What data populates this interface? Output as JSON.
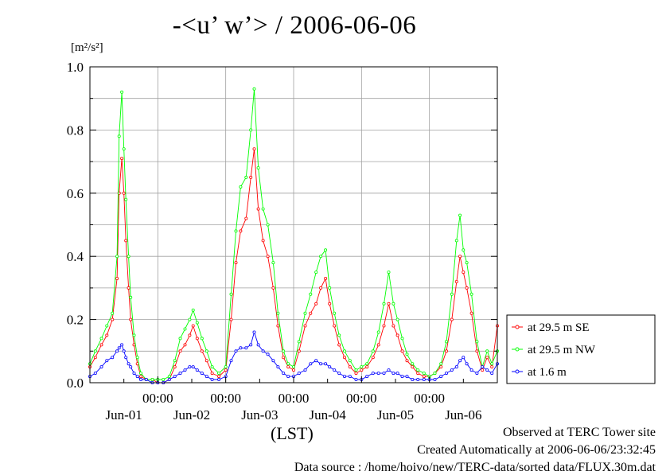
{
  "page": {
    "title": "-<u’ w’> / 2006-06-06",
    "unit_label": "[m²/s²]",
    "xaxis_note": "(LST)",
    "footer": [
      "Observed at TERC Tower site",
      "Created Automatically at 2006-06-06/23:32:45",
      "Data source : /home/hoivo/new/TERC-data/sorted  data/FLUX.30m.dat"
    ]
  },
  "chart_data": {
    "type": "line",
    "title": "-<u’ w’> / 2006-06-06",
    "ylabel": "[m²/s²]",
    "xlabel": "(LST)",
    "ylim": [
      0,
      1.0
    ],
    "yticks": [
      "0.0",
      "0.2",
      "0.4",
      "0.6",
      "0.8",
      "1.0"
    ],
    "xlim_days": [
      0,
      6
    ],
    "x_midnight_labels": [
      "00:00",
      "00:00",
      "00:00",
      "00:00",
      "00:00"
    ],
    "x_day_labels": [
      "Jun-01",
      "Jun-02",
      "Jun-03",
      "Jun-04",
      "Jun-05",
      "Jun-06"
    ],
    "grid": true,
    "legend_position": "right",
    "series": [
      {
        "name": "at 29.5 m SE",
        "color": "#ff0000",
        "points": [
          [
            0.0,
            0.05
          ],
          [
            0.08,
            0.08
          ],
          [
            0.17,
            0.12
          ],
          [
            0.25,
            0.15
          ],
          [
            0.33,
            0.2
          ],
          [
            0.4,
            0.33
          ],
          [
            0.43,
            0.6
          ],
          [
            0.47,
            0.71
          ],
          [
            0.5,
            0.6
          ],
          [
            0.53,
            0.45
          ],
          [
            0.57,
            0.3
          ],
          [
            0.6,
            0.2
          ],
          [
            0.65,
            0.12
          ],
          [
            0.7,
            0.06
          ],
          [
            0.75,
            0.02
          ],
          [
            0.83,
            0.01
          ],
          [
            0.92,
            0.01
          ],
          [
            1.0,
            0.0
          ],
          [
            1.08,
            0.0
          ],
          [
            1.17,
            0.01
          ],
          [
            1.25,
            0.05
          ],
          [
            1.33,
            0.1
          ],
          [
            1.4,
            0.12
          ],
          [
            1.47,
            0.15
          ],
          [
            1.52,
            0.18
          ],
          [
            1.58,
            0.14
          ],
          [
            1.65,
            0.1
          ],
          [
            1.72,
            0.07
          ],
          [
            1.8,
            0.03
          ],
          [
            1.9,
            0.02
          ],
          [
            2.0,
            0.04
          ],
          [
            2.08,
            0.2
          ],
          [
            2.15,
            0.38
          ],
          [
            2.22,
            0.48
          ],
          [
            2.3,
            0.52
          ],
          [
            2.37,
            0.65
          ],
          [
            2.42,
            0.74
          ],
          [
            2.48,
            0.55
          ],
          [
            2.55,
            0.45
          ],
          [
            2.62,
            0.4
          ],
          [
            2.7,
            0.3
          ],
          [
            2.77,
            0.18
          ],
          [
            2.85,
            0.08
          ],
          [
            2.92,
            0.05
          ],
          [
            3.0,
            0.04
          ],
          [
            3.08,
            0.1
          ],
          [
            3.17,
            0.18
          ],
          [
            3.25,
            0.22
          ],
          [
            3.33,
            0.25
          ],
          [
            3.4,
            0.3
          ],
          [
            3.47,
            0.33
          ],
          [
            3.53,
            0.25
          ],
          [
            3.6,
            0.18
          ],
          [
            3.67,
            0.12
          ],
          [
            3.75,
            0.08
          ],
          [
            3.83,
            0.05
          ],
          [
            3.92,
            0.03
          ],
          [
            4.0,
            0.04
          ],
          [
            4.08,
            0.05
          ],
          [
            4.17,
            0.08
          ],
          [
            4.25,
            0.12
          ],
          [
            4.33,
            0.18
          ],
          [
            4.4,
            0.25
          ],
          [
            4.47,
            0.18
          ],
          [
            4.53,
            0.15
          ],
          [
            4.6,
            0.1
          ],
          [
            4.67,
            0.07
          ],
          [
            4.75,
            0.05
          ],
          [
            4.83,
            0.03
          ],
          [
            4.92,
            0.02
          ],
          [
            5.0,
            0.02
          ],
          [
            5.08,
            0.03
          ],
          [
            5.17,
            0.05
          ],
          [
            5.25,
            0.1
          ],
          [
            5.33,
            0.2
          ],
          [
            5.4,
            0.32
          ],
          [
            5.45,
            0.4
          ],
          [
            5.5,
            0.35
          ],
          [
            5.55,
            0.3
          ],
          [
            5.62,
            0.22
          ],
          [
            5.7,
            0.1
          ],
          [
            5.78,
            0.04
          ],
          [
            5.85,
            0.08
          ],
          [
            5.92,
            0.05
          ],
          [
            6.0,
            0.18
          ]
        ]
      },
      {
        "name": "at 29.5 m NW",
        "color": "#00ff00",
        "points": [
          [
            0.0,
            0.06
          ],
          [
            0.08,
            0.1
          ],
          [
            0.17,
            0.14
          ],
          [
            0.25,
            0.18
          ],
          [
            0.33,
            0.22
          ],
          [
            0.4,
            0.4
          ],
          [
            0.43,
            0.78
          ],
          [
            0.47,
            0.92
          ],
          [
            0.5,
            0.74
          ],
          [
            0.53,
            0.58
          ],
          [
            0.57,
            0.4
          ],
          [
            0.6,
            0.27
          ],
          [
            0.65,
            0.15
          ],
          [
            0.7,
            0.08
          ],
          [
            0.75,
            0.03
          ],
          [
            0.83,
            0.01
          ],
          [
            0.92,
            0.01
          ],
          [
            1.0,
            0.01
          ],
          [
            1.08,
            0.01
          ],
          [
            1.17,
            0.02
          ],
          [
            1.25,
            0.07
          ],
          [
            1.33,
            0.14
          ],
          [
            1.4,
            0.17
          ],
          [
            1.47,
            0.2
          ],
          [
            1.52,
            0.23
          ],
          [
            1.58,
            0.19
          ],
          [
            1.65,
            0.14
          ],
          [
            1.72,
            0.1
          ],
          [
            1.8,
            0.05
          ],
          [
            1.9,
            0.03
          ],
          [
            2.0,
            0.05
          ],
          [
            2.08,
            0.28
          ],
          [
            2.15,
            0.48
          ],
          [
            2.22,
            0.62
          ],
          [
            2.3,
            0.65
          ],
          [
            2.37,
            0.8
          ],
          [
            2.42,
            0.93
          ],
          [
            2.48,
            0.68
          ],
          [
            2.55,
            0.55
          ],
          [
            2.62,
            0.5
          ],
          [
            2.7,
            0.38
          ],
          [
            2.77,
            0.22
          ],
          [
            2.85,
            0.1
          ],
          [
            2.92,
            0.06
          ],
          [
            3.0,
            0.05
          ],
          [
            3.08,
            0.13
          ],
          [
            3.17,
            0.22
          ],
          [
            3.25,
            0.28
          ],
          [
            3.33,
            0.35
          ],
          [
            3.4,
            0.4
          ],
          [
            3.47,
            0.42
          ],
          [
            3.53,
            0.3
          ],
          [
            3.6,
            0.22
          ],
          [
            3.67,
            0.15
          ],
          [
            3.75,
            0.1
          ],
          [
            3.83,
            0.07
          ],
          [
            3.92,
            0.04
          ],
          [
            4.0,
            0.05
          ],
          [
            4.08,
            0.06
          ],
          [
            4.17,
            0.1
          ],
          [
            4.25,
            0.16
          ],
          [
            4.33,
            0.25
          ],
          [
            4.4,
            0.35
          ],
          [
            4.47,
            0.25
          ],
          [
            4.53,
            0.2
          ],
          [
            4.6,
            0.14
          ],
          [
            4.67,
            0.09
          ],
          [
            4.75,
            0.06
          ],
          [
            4.83,
            0.04
          ],
          [
            4.92,
            0.03
          ],
          [
            5.0,
            0.02
          ],
          [
            5.08,
            0.03
          ],
          [
            5.17,
            0.06
          ],
          [
            5.25,
            0.13
          ],
          [
            5.33,
            0.28
          ],
          [
            5.4,
            0.45
          ],
          [
            5.45,
            0.53
          ],
          [
            5.5,
            0.42
          ],
          [
            5.55,
            0.38
          ],
          [
            5.62,
            0.28
          ],
          [
            5.7,
            0.13
          ],
          [
            5.78,
            0.05
          ],
          [
            5.85,
            0.1
          ],
          [
            5.92,
            0.06
          ],
          [
            6.0,
            0.1
          ]
        ]
      },
      {
        "name": "at 1.6 m",
        "color": "#0000ff",
        "points": [
          [
            0.0,
            0.02
          ],
          [
            0.08,
            0.03
          ],
          [
            0.17,
            0.05
          ],
          [
            0.25,
            0.07
          ],
          [
            0.33,
            0.08
          ],
          [
            0.4,
            0.1
          ],
          [
            0.43,
            0.11
          ],
          [
            0.47,
            0.12
          ],
          [
            0.5,
            0.1
          ],
          [
            0.53,
            0.08
          ],
          [
            0.57,
            0.06
          ],
          [
            0.6,
            0.05
          ],
          [
            0.65,
            0.03
          ],
          [
            0.7,
            0.02
          ],
          [
            0.75,
            0.01
          ],
          [
            0.83,
            0.01
          ],
          [
            0.92,
            0.0
          ],
          [
            1.0,
            0.0
          ],
          [
            1.08,
            0.0
          ],
          [
            1.17,
            0.01
          ],
          [
            1.25,
            0.02
          ],
          [
            1.33,
            0.03
          ],
          [
            1.4,
            0.04
          ],
          [
            1.47,
            0.05
          ],
          [
            1.52,
            0.05
          ],
          [
            1.58,
            0.04
          ],
          [
            1.65,
            0.03
          ],
          [
            1.72,
            0.02
          ],
          [
            1.8,
            0.01
          ],
          [
            1.9,
            0.01
          ],
          [
            2.0,
            0.02
          ],
          [
            2.08,
            0.07
          ],
          [
            2.15,
            0.1
          ],
          [
            2.22,
            0.11
          ],
          [
            2.3,
            0.11
          ],
          [
            2.37,
            0.12
          ],
          [
            2.42,
            0.16
          ],
          [
            2.48,
            0.12
          ],
          [
            2.55,
            0.1
          ],
          [
            2.62,
            0.09
          ],
          [
            2.7,
            0.07
          ],
          [
            2.77,
            0.05
          ],
          [
            2.85,
            0.03
          ],
          [
            2.92,
            0.02
          ],
          [
            3.0,
            0.02
          ],
          [
            3.08,
            0.03
          ],
          [
            3.17,
            0.04
          ],
          [
            3.25,
            0.06
          ],
          [
            3.33,
            0.07
          ],
          [
            3.4,
            0.06
          ],
          [
            3.47,
            0.06
          ],
          [
            3.53,
            0.05
          ],
          [
            3.6,
            0.04
          ],
          [
            3.67,
            0.03
          ],
          [
            3.75,
            0.02
          ],
          [
            3.83,
            0.02
          ],
          [
            3.92,
            0.01
          ],
          [
            4.0,
            0.01
          ],
          [
            4.08,
            0.02
          ],
          [
            4.17,
            0.03
          ],
          [
            4.25,
            0.03
          ],
          [
            4.33,
            0.03
          ],
          [
            4.4,
            0.04
          ],
          [
            4.47,
            0.03
          ],
          [
            4.53,
            0.03
          ],
          [
            4.6,
            0.02
          ],
          [
            4.67,
            0.02
          ],
          [
            4.75,
            0.01
          ],
          [
            4.83,
            0.01
          ],
          [
            4.92,
            0.01
          ],
          [
            5.0,
            0.01
          ],
          [
            5.08,
            0.01
          ],
          [
            5.17,
            0.02
          ],
          [
            5.25,
            0.03
          ],
          [
            5.33,
            0.04
          ],
          [
            5.4,
            0.05
          ],
          [
            5.45,
            0.07
          ],
          [
            5.5,
            0.08
          ],
          [
            5.55,
            0.06
          ],
          [
            5.62,
            0.04
          ],
          [
            5.7,
            0.03
          ],
          [
            5.78,
            0.05
          ],
          [
            5.85,
            0.04
          ],
          [
            5.92,
            0.03
          ],
          [
            6.0,
            0.06
          ]
        ]
      }
    ]
  }
}
